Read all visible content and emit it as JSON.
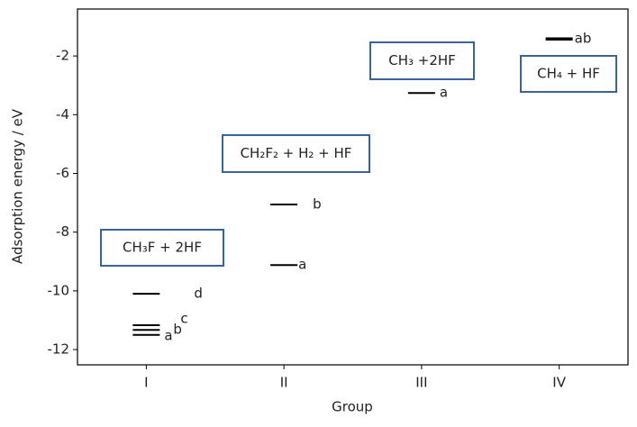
{
  "chart_data": {
    "type": "level",
    "xlabel": "Group",
    "ylabel": "Adsorption energy / eV",
    "xlim": [
      -0.5,
      3.5
    ],
    "xticks": [
      {
        "value": 0,
        "label": "I"
      },
      {
        "value": 1,
        "label": "II"
      },
      {
        "value": 2,
        "label": "III"
      },
      {
        "value": 3,
        "label": "IV"
      }
    ],
    "ylim": [
      -12.52,
      -0.4
    ],
    "yticks": [
      -2,
      -4,
      -6,
      -8,
      -10,
      -12
    ],
    "color": "#000000",
    "x": [
      0,
      0,
      0,
      0,
      1,
      1,
      2,
      3
    ],
    "values": [
      -10.1,
      -11.17,
      -11.33,
      -11.5,
      -7.06,
      -9.12,
      -3.26,
      -1.42
    ],
    "point_labels": [
      "d",
      "c",
      "b",
      "a",
      "b",
      "a",
      "a",
      "ab"
    ],
    "annotations": [
      "CH₃F + 2HF",
      "CH₂F₂ + H₂ + HF",
      "CH₃ +2HF",
      "CH₄ + HF"
    ],
    "annotation_color": "#3a62a0"
  }
}
